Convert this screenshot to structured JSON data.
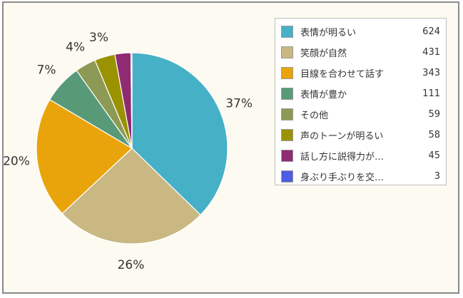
{
  "chart_data": {
    "type": "pie",
    "categories": [
      "表情が明るい",
      "笑顔が自然",
      "目線を合わせて話す",
      "表情が豊か",
      "その他",
      "声のトーンが明るい",
      "話し方に説得力が…",
      "身ぶり手ぶりを交…"
    ],
    "values": [
      624,
      431,
      343,
      111,
      59,
      58,
      45,
      3
    ],
    "percent_labels": [
      "37%",
      "26%",
      "20%",
      "7%",
      "4%",
      "3%"
    ],
    "colors": [
      "#46b0c6",
      "#c9b882",
      "#eaa40b",
      "#589a78",
      "#8d9a55",
      "#9a9200",
      "#8e2b72",
      "#4d5ce0"
    ],
    "legend_position": "right",
    "start_angle": "12 o'clock",
    "direction": "clockwise"
  }
}
